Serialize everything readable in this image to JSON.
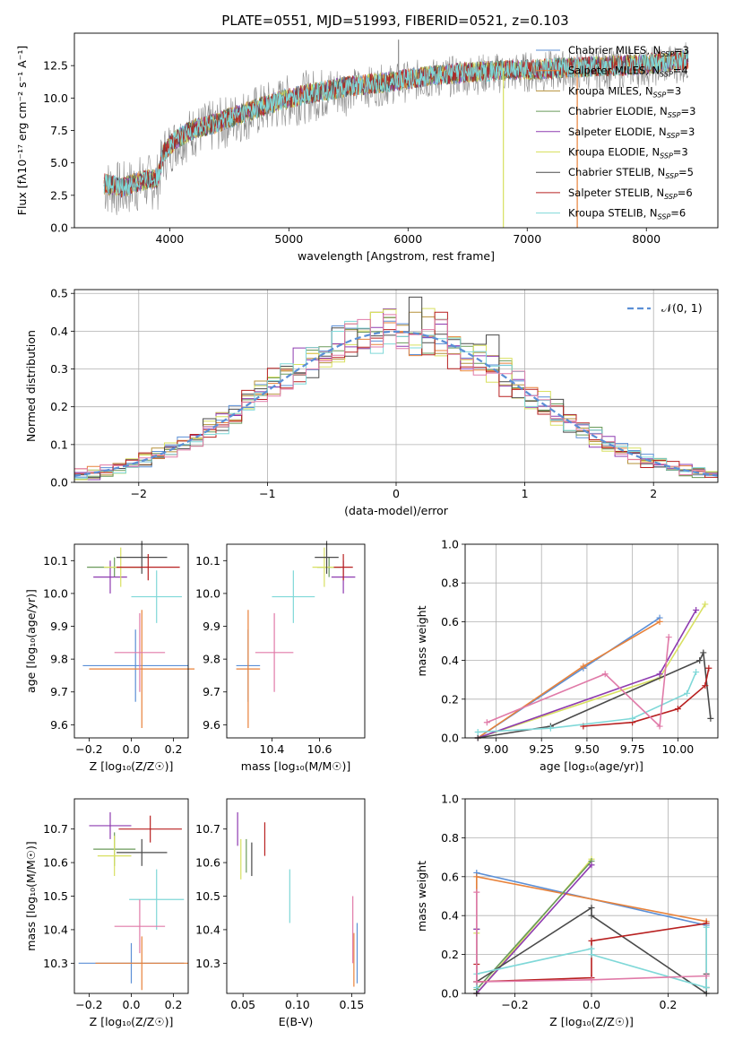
{
  "title": "PLATE=0551, MJD=51993, FIBERID=0521, z=0.103",
  "colors": {
    "Chabrier MILES": "#5b8fd6",
    "Salpeter MILES": "#e8823a",
    "Kroupa MILES": "#b5903a",
    "Chabrier ELODIE": "#6a9a5a",
    "Salpeter ELODIE": "#8e3bb0",
    "Kroupa ELODIE": "#d8e060",
    "Chabrier STELIB": "#4a4a4a",
    "Salpeter STELIB": "#b82020",
    "Kroupa STELIB": "#7fd8d8",
    "pink": "#e07aa8",
    "green": "#9fd050",
    "normal": "#5b8fd6"
  },
  "chart_data": [
    {
      "id": "spectrum",
      "type": "line",
      "title": "PLATE=0551, MJD=51993, FIBERID=0521, z=0.103",
      "xlabel": "wavelength [Angstrom, rest frame]",
      "ylabel": "Flux [fλ10⁻¹⁷ erg cm⁻² s⁻¹ A⁻¹]",
      "xlim": [
        3200,
        8600
      ],
      "ylim": [
        0,
        15
      ],
      "xticks": [
        4000,
        5000,
        6000,
        7000,
        8000
      ],
      "yticks": [
        0.0,
        2.5,
        5.0,
        7.5,
        10.0,
        12.5
      ],
      "legend_position": "top-right",
      "legend": [
        {
          "label": "Chabrier MILES, N",
          "sub": "SSP",
          "suffix": "=3",
          "color": "#5b8fd6"
        },
        {
          "label": "Salpeter MILES, N",
          "sub": "SSP",
          "suffix": "=4",
          "color": "#e8823a"
        },
        {
          "label": "Kroupa MILES, N",
          "sub": "SSP",
          "suffix": "=3",
          "color": "#b5903a"
        },
        {
          "label": "Chabrier ELODIE, N",
          "sub": "SSP",
          "suffix": "=3",
          "color": "#6a9a5a"
        },
        {
          "label": "Salpeter ELODIE, N",
          "sub": "SSP",
          "suffix": "=3",
          "color": "#8e3bb0"
        },
        {
          "label": "Kroupa ELODIE, N",
          "sub": "SSP",
          "suffix": "=3",
          "color": "#d8e060"
        },
        {
          "label": "Chabrier STELIB, N",
          "sub": "SSP",
          "suffix": "=5",
          "color": "#4a4a4a"
        },
        {
          "label": "Salpeter STELIB, N",
          "sub": "SSP",
          "suffix": "=6",
          "color": "#b82020"
        },
        {
          "label": "Kroupa STELIB, N",
          "sub": "SSP",
          "suffix": "=6",
          "color": "#7fd8d8"
        }
      ],
      "model_shape": [
        [
          3450,
          3.6
        ],
        [
          3600,
          3.3
        ],
        [
          3750,
          3.8
        ],
        [
          3900,
          4.0
        ],
        [
          3950,
          6.0
        ],
        [
          4050,
          7.0
        ],
        [
          4200,
          7.8
        ],
        [
          4400,
          8.3
        ],
        [
          4600,
          9.0
        ],
        [
          4800,
          9.6
        ],
        [
          5000,
          10.2
        ],
        [
          5200,
          10.6
        ],
        [
          5500,
          11.1
        ],
        [
          5800,
          11.4
        ],
        [
          6100,
          11.8
        ],
        [
          6500,
          12.2
        ],
        [
          7000,
          12.4
        ],
        [
          7500,
          12.6
        ],
        [
          8000,
          12.8
        ],
        [
          8350,
          13.2
        ]
      ],
      "spikes": [
        [
          6800,
          0.0
        ],
        [
          7420,
          0.0
        ],
        [
          5920,
          14.5
        ]
      ]
    },
    {
      "id": "residuals",
      "type": "bar",
      "xlabel": "(data-model)/error",
      "ylabel": "Normed distribution",
      "xlim": [
        -2.5,
        2.5
      ],
      "ylim": [
        0,
        0.51
      ],
      "xticks": [
        -2,
        -1,
        0,
        1,
        2
      ],
      "yticks": [
        0.0,
        0.1,
        0.2,
        0.3,
        0.4,
        0.5
      ],
      "grid": true,
      "bin_width": 0.1,
      "legend": [
        {
          "label": "𝒩(0, 1)",
          "color": "#5b8fd6"
        }
      ],
      "legend_position": "top-right",
      "highlight_bins": [
        {
          "x": 0.1,
          "value": 0.49,
          "color": "#4a4a4a"
        },
        {
          "x": 0.2,
          "value": 0.46,
          "color": "#d8e060"
        },
        {
          "x": 0.3,
          "value": 0.45,
          "color": "#b82020"
        },
        {
          "x": 0.7,
          "value": 0.39,
          "color": "#4a4a4a"
        }
      ]
    },
    {
      "id": "age_vs_Z",
      "type": "scatter",
      "xlabel": "Z [log₁₀(Z/Z☉)]",
      "ylabel": "age  [log₁₀(age/yr)]",
      "xlim": [
        -0.27,
        0.27
      ],
      "ylim": [
        9.56,
        10.15
      ],
      "xticks": [
        -0.2,
        0.0,
        0.2
      ],
      "yticks": [
        9.6,
        9.7,
        9.8,
        9.9,
        10.0,
        10.1
      ],
      "points": [
        {
          "x": 0.02,
          "y": 9.78,
          "xerr": 0.25,
          "yerr": 0.11,
          "color": "#5b8fd6"
        },
        {
          "x": 0.05,
          "y": 9.77,
          "xerr": 0.25,
          "yerr": 0.18,
          "color": "#e8823a"
        },
        {
          "x": -0.08,
          "y": 10.08,
          "xerr": 0.13,
          "yerr": 0.03,
          "color": "#6a9a5a"
        },
        {
          "x": -0.1,
          "y": 10.05,
          "xerr": 0.08,
          "yerr": 0.05,
          "color": "#8e3bb0"
        },
        {
          "x": -0.05,
          "y": 10.08,
          "xerr": 0.08,
          "yerr": 0.06,
          "color": "#d8e060"
        },
        {
          "x": 0.05,
          "y": 10.11,
          "xerr": 0.12,
          "yerr": 0.05,
          "color": "#4a4a4a"
        },
        {
          "x": 0.08,
          "y": 10.08,
          "xerr": 0.15,
          "yerr": 0.04,
          "color": "#b82020"
        },
        {
          "x": 0.12,
          "y": 9.99,
          "xerr": 0.12,
          "yerr": 0.08,
          "color": "#7fd8d8"
        },
        {
          "x": 0.04,
          "y": 9.82,
          "xerr": 0.12,
          "yerr": 0.12,
          "color": "#e07aa8"
        }
      ]
    },
    {
      "id": "age_vs_mass",
      "type": "scatter",
      "xlabel": "mass [log₁₀(M/M☉)]",
      "ylabel": "",
      "xlim": [
        10.21,
        10.79
      ],
      "ylim": [
        9.56,
        10.15
      ],
      "xticks": [
        10.4,
        10.6
      ],
      "yticks": [
        9.6,
        9.7,
        9.8,
        9.9,
        10.0,
        10.1
      ],
      "points": [
        {
          "x": 10.3,
          "y": 9.78,
          "xerr": 0.05,
          "yerr": 0.11,
          "color": "#5b8fd6"
        },
        {
          "x": 10.3,
          "y": 9.77,
          "xerr": 0.05,
          "yerr": 0.18,
          "color": "#e8823a"
        },
        {
          "x": 10.64,
          "y": 10.08,
          "xerr": 0.05,
          "yerr": 0.03,
          "color": "#6a9a5a"
        },
        {
          "x": 10.7,
          "y": 10.05,
          "xerr": 0.05,
          "yerr": 0.05,
          "color": "#8e3bb0"
        },
        {
          "x": 10.62,
          "y": 10.08,
          "xerr": 0.05,
          "yerr": 0.06,
          "color": "#d8e060"
        },
        {
          "x": 10.63,
          "y": 10.11,
          "xerr": 0.05,
          "yerr": 0.05,
          "color": "#4a4a4a"
        },
        {
          "x": 10.7,
          "y": 10.08,
          "xerr": 0.04,
          "yerr": 0.04,
          "color": "#b82020"
        },
        {
          "x": 10.49,
          "y": 9.99,
          "xerr": 0.09,
          "yerr": 0.08,
          "color": "#7fd8d8"
        },
        {
          "x": 10.41,
          "y": 9.82,
          "xerr": 0.08,
          "yerr": 0.12,
          "color": "#e07aa8"
        }
      ]
    },
    {
      "id": "massweight_vs_age",
      "type": "line",
      "xlabel": "age  [log₁₀(age/yr)]",
      "ylabel": "mass weight",
      "xlim": [
        8.83,
        10.22
      ],
      "ylim": [
        0.0,
        1.0
      ],
      "xticks": [
        9.0,
        9.25,
        9.5,
        9.75,
        10.0
      ],
      "yticks": [
        0.0,
        0.2,
        0.4,
        0.6,
        0.8,
        1.0
      ],
      "grid": true,
      "series": [
        {
          "color": "#5b8fd6",
          "points": [
            [
              8.9,
              0.0
            ],
            [
              9.48,
              0.36
            ],
            [
              9.9,
              0.62
            ]
          ]
        },
        {
          "color": "#e8823a",
          "points": [
            [
              8.9,
              0.0
            ],
            [
              9.48,
              0.37
            ],
            [
              9.9,
              0.6
            ]
          ]
        },
        {
          "color": "#d8e060",
          "points": [
            [
              8.9,
              0.0
            ],
            [
              9.9,
              0.31
            ],
            [
              10.15,
              0.69
            ]
          ]
        },
        {
          "color": "#8e3bb0",
          "points": [
            [
              8.9,
              0.0
            ],
            [
              9.9,
              0.33
            ],
            [
              10.1,
              0.66
            ]
          ]
        },
        {
          "color": "#4a4a4a",
          "points": [
            [
              8.9,
              0.0
            ],
            [
              9.3,
              0.06
            ],
            [
              10.12,
              0.4
            ],
            [
              10.14,
              0.44
            ],
            [
              10.18,
              0.1
            ]
          ]
        },
        {
          "color": "#b82020",
          "points": [
            [
              9.48,
              0.06
            ],
            [
              9.75,
              0.08
            ],
            [
              10.0,
              0.15
            ],
            [
              10.15,
              0.27
            ],
            [
              10.17,
              0.36
            ]
          ]
        },
        {
          "color": "#7fd8d8",
          "points": [
            [
              8.9,
              0.03
            ],
            [
              9.3,
              0.05
            ],
            [
              9.75,
              0.1
            ],
            [
              10.05,
              0.23
            ],
            [
              10.1,
              0.34
            ]
          ]
        },
        {
          "color": "#e07aa8",
          "points": [
            [
              8.95,
              0.08
            ],
            [
              9.6,
              0.33
            ],
            [
              9.9,
              0.06
            ],
            [
              9.95,
              0.52
            ]
          ]
        }
      ]
    },
    {
      "id": "mass_vs_Z",
      "type": "scatter",
      "xlabel": "Z [log₁₀(Z/Z☉)]",
      "ylabel": "mass [log₁₀(M/M☉)]",
      "xlim": [
        -0.27,
        0.27
      ],
      "ylim": [
        10.21,
        10.79
      ],
      "xticks": [
        -0.2,
        0.0,
        0.2
      ],
      "yticks": [
        10.3,
        10.4,
        10.5,
        10.6,
        10.7
      ],
      "points": [
        {
          "x": 0.0,
          "y": 10.3,
          "xerr": 0.25,
          "yerr": 0.06,
          "color": "#5b8fd6"
        },
        {
          "x": 0.05,
          "y": 10.3,
          "xerr": 0.22,
          "yerr": 0.08,
          "color": "#e8823a"
        },
        {
          "x": -0.08,
          "y": 10.64,
          "xerr": 0.1,
          "yerr": 0.05,
          "color": "#6a9a5a"
        },
        {
          "x": -0.1,
          "y": 10.71,
          "xerr": 0.1,
          "yerr": 0.04,
          "color": "#8e3bb0"
        },
        {
          "x": -0.08,
          "y": 10.62,
          "xerr": 0.08,
          "yerr": 0.06,
          "color": "#d8e060"
        },
        {
          "x": 0.05,
          "y": 10.63,
          "xerr": 0.12,
          "yerr": 0.04,
          "color": "#4a4a4a"
        },
        {
          "x": 0.09,
          "y": 10.7,
          "xerr": 0.15,
          "yerr": 0.04,
          "color": "#b82020"
        },
        {
          "x": 0.12,
          "y": 10.49,
          "xerr": 0.13,
          "yerr": 0.09,
          "color": "#7fd8d8"
        },
        {
          "x": 0.04,
          "y": 10.41,
          "xerr": 0.12,
          "yerr": 0.08,
          "color": "#e07aa8"
        }
      ]
    },
    {
      "id": "mass_vs_EBV",
      "type": "scatter",
      "xlabel": "E(B-V)",
      "ylabel": "",
      "xlim": [
        0.035,
        0.162
      ],
      "ylim": [
        10.21,
        10.79
      ],
      "xticks": [
        0.05,
        0.1,
        0.15
      ],
      "yticks": [
        10.3,
        10.4,
        10.5,
        10.6,
        10.7
      ],
      "points": [
        {
          "x": 0.155,
          "y": 10.33,
          "yerr": 0.09,
          "color": "#5b8fd6"
        },
        {
          "x": 0.152,
          "y": 10.31,
          "yerr": 0.08,
          "color": "#e8823a"
        },
        {
          "x": 0.053,
          "y": 10.62,
          "yerr": 0.05,
          "color": "#6a9a5a"
        },
        {
          "x": 0.045,
          "y": 10.7,
          "yerr": 0.05,
          "color": "#8e3bb0"
        },
        {
          "x": 0.048,
          "y": 10.61,
          "yerr": 0.06,
          "color": "#d8e060"
        },
        {
          "x": 0.058,
          "y": 10.61,
          "yerr": 0.05,
          "color": "#4a4a4a"
        },
        {
          "x": 0.07,
          "y": 10.67,
          "yerr": 0.05,
          "color": "#b82020"
        },
        {
          "x": 0.093,
          "y": 10.5,
          "yerr": 0.08,
          "color": "#7fd8d8"
        },
        {
          "x": 0.151,
          "y": 10.4,
          "yerr": 0.1,
          "color": "#e07aa8"
        }
      ]
    },
    {
      "id": "massweight_vs_Z",
      "type": "line",
      "xlabel": "Z [log₁₀(Z/Z☉)]",
      "ylabel": "mass weight",
      "xlim": [
        -0.33,
        0.33
      ],
      "ylim": [
        0.0,
        1.0
      ],
      "xticks": [
        -0.2,
        0.0,
        0.2
      ],
      "yticks": [
        0.0,
        0.2,
        0.4,
        0.6,
        0.8,
        1.0
      ],
      "grid": true,
      "series": [
        {
          "color": "#5b8fd6",
          "points": [
            [
              -0.3,
              0.0
            ],
            [
              -0.3,
              0.62
            ],
            [
              0.3,
              0.35
            ],
            [
              0.3,
              0.03
            ]
          ]
        },
        {
          "color": "#e8823a",
          "points": [
            [
              -0.3,
              0.0
            ],
            [
              -0.3,
              0.6
            ],
            [
              0.3,
              0.37
            ],
            [
              0.3,
              0.03
            ]
          ]
        },
        {
          "color": "#d8e060",
          "points": [
            [
              -0.3,
              0.31
            ],
            [
              -0.3,
              0.0
            ],
            [
              0.0,
              0.69
            ]
          ]
        },
        {
          "color": "#6a9a5a",
          "points": [
            [
              -0.3,
              0.33
            ],
            [
              -0.3,
              0.02
            ],
            [
              0.0,
              0.68
            ]
          ]
        },
        {
          "color": "#8e3bb0",
          "points": [
            [
              -0.3,
              0.33
            ],
            [
              -0.3,
              0.0
            ],
            [
              0.0,
              0.66
            ]
          ]
        },
        {
          "color": "#4a4a4a",
          "points": [
            [
              -0.3,
              0.0
            ],
            [
              -0.3,
              0.06
            ],
            [
              0.0,
              0.44
            ],
            [
              0.0,
              0.4
            ],
            [
              0.3,
              0.0
            ],
            [
              0.3,
              0.1
            ]
          ]
        },
        {
          "color": "#b82020",
          "points": [
            [
              -0.3,
              0.15
            ],
            [
              -0.3,
              0.06
            ],
            [
              0.0,
              0.08
            ],
            [
              0.0,
              0.27
            ],
            [
              0.3,
              0.36
            ]
          ]
        },
        {
          "color": "#7fd8d8",
          "points": [
            [
              -0.3,
              0.03
            ],
            [
              -0.3,
              0.1
            ],
            [
              0.0,
              0.23
            ],
            [
              0.0,
              0.2
            ],
            [
              0.3,
              0.03
            ],
            [
              0.3,
              0.34
            ]
          ]
        },
        {
          "color": "#e07aa8",
          "points": [
            [
              -0.3,
              0.52
            ],
            [
              -0.3,
              0.06
            ],
            [
              0.0,
              0.07
            ],
            [
              0.3,
              0.09
            ]
          ]
        }
      ]
    }
  ]
}
